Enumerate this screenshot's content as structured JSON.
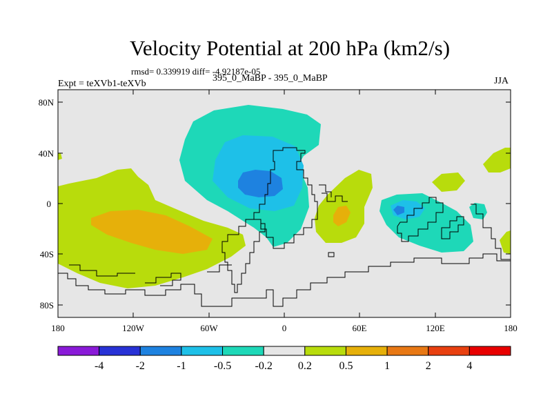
{
  "title": "Velocity Potential at 200 hPa (km2/s)",
  "stats": "rmsd= 0.339919 diff= -4.92187e-05",
  "experiment": "Expt = teXVb1-teXVb",
  "case": "395_0_MaBP - 395_0_MaBP",
  "season": "JJA",
  "map": {
    "lat_ticks": [
      "80N",
      "40N",
      "0",
      "40S",
      "80S"
    ],
    "lon_ticks": [
      "180",
      "120W",
      "60W",
      "0",
      "60E",
      "120E",
      "180"
    ]
  },
  "colorbar": {
    "labels": [
      "-4",
      "-2",
      "-1",
      "-0.5",
      "-0.2",
      "0.2",
      "0.5",
      "1",
      "2",
      "4"
    ],
    "colors": [
      "#8a1ad8",
      "#2832d6",
      "#1e82e0",
      "#1ec0e8",
      "#1ed8b8",
      "#e6e6e6",
      "#b8dc0c",
      "#e6b00a",
      "#e87814",
      "#e84010",
      "#e80000"
    ]
  },
  "chart_data": {
    "type": "heatmap",
    "title": "Velocity Potential at 200 hPa (km2/s)",
    "x_range": [
      -180,
      180
    ],
    "y_range": [
      -90,
      90
    ],
    "contour_levels": [
      -4,
      -2,
      -1,
      -0.5,
      -0.2,
      0.2,
      0.5,
      1,
      2,
      4
    ],
    "xticks": [
      "180",
      "120W",
      "60W",
      "0",
      "60E",
      "120E",
      "180"
    ],
    "yticks": [
      "80N",
      "40N",
      "0",
      "40S",
      "80S"
    ]
  }
}
